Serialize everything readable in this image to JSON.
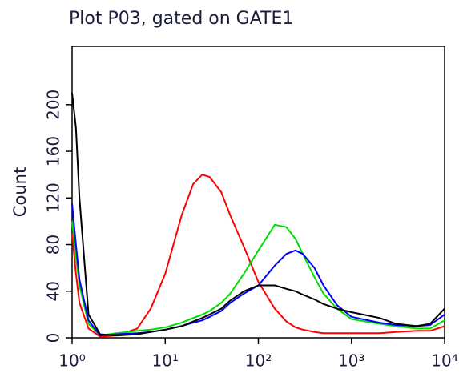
{
  "chart_data": {
    "type": "line",
    "title": "Plot P03, gated on GATE1",
    "y_label": "Count",
    "log_x": true,
    "x": [
      1,
      1.1,
      1.2,
      1.5,
      2,
      3,
      5,
      7,
      10,
      15,
      20,
      25,
      30,
      40,
      50,
      70,
      100,
      150,
      200,
      250,
      300,
      400,
      500,
      700,
      1000,
      2000,
      3000,
      5000,
      7000,
      10000
    ],
    "series": [
      {
        "color": "#ff0000",
        "values": [
          90,
          55,
          30,
          8,
          1,
          2,
          8,
          25,
          55,
          105,
          132,
          140,
          138,
          125,
          105,
          78,
          48,
          25,
          14,
          9,
          7,
          5,
          4,
          4,
          4,
          4,
          5,
          6,
          6,
          10
        ]
      },
      {
        "color": "#00dd00",
        "values": [
          100,
          70,
          45,
          12,
          2,
          4,
          6,
          7,
          9,
          13,
          17,
          20,
          23,
          30,
          38,
          55,
          75,
          97,
          95,
          85,
          72,
          52,
          38,
          25,
          16,
          12,
          10,
          8,
          8,
          15
        ]
      },
      {
        "color": "#0000ff",
        "values": [
          115,
          80,
          50,
          15,
          2,
          3,
          4,
          5,
          7,
          10,
          13,
          15,
          18,
          23,
          30,
          38,
          45,
          62,
          72,
          75,
          72,
          60,
          45,
          28,
          18,
          13,
          11,
          10,
          11,
          20
        ]
      },
      {
        "color": "#000000",
        "values": [
          210,
          180,
          120,
          20,
          3,
          2,
          3,
          5,
          7,
          10,
          14,
          17,
          20,
          25,
          32,
          40,
          45,
          45,
          42,
          40,
          37,
          33,
          29,
          25,
          22,
          17,
          12,
          10,
          12,
          25
        ]
      }
    ],
    "xlim": [
      1,
      10000
    ],
    "xticks": [
      {
        "value": 1,
        "label": "10⁰"
      },
      {
        "value": 10,
        "label": "10¹"
      },
      {
        "value": 100,
        "label": "10²"
      },
      {
        "value": 1000,
        "label": "10³"
      },
      {
        "value": 10000,
        "label": "10⁴"
      }
    ],
    "ylim": [
      0,
      250
    ],
    "yticks": [
      0,
      40,
      80,
      120,
      160,
      200
    ]
  }
}
